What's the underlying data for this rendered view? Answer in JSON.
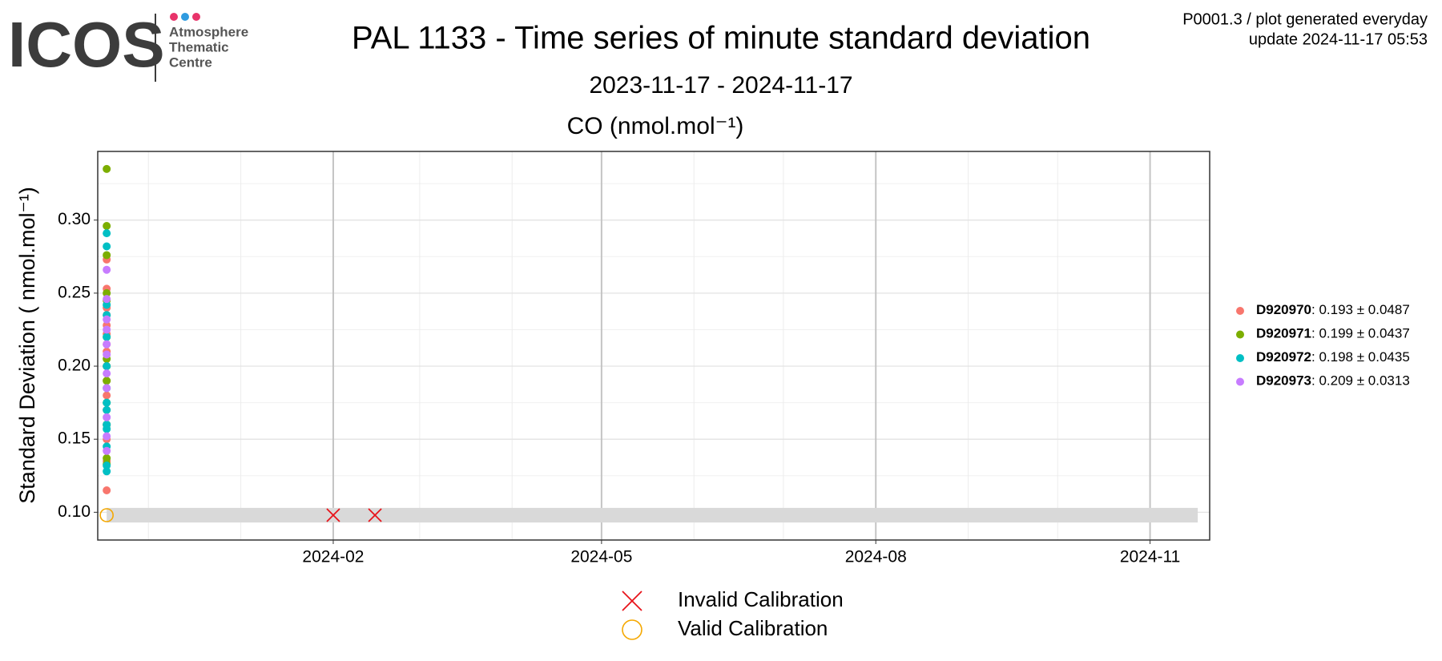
{
  "header": {
    "logo": "ICOS",
    "logo_lines": [
      "Atmosphere",
      "Thematic",
      "Centre"
    ],
    "top_right": [
      "P0001.3 / plot generated everyday",
      "update  2024-11-17 05:53"
    ]
  },
  "chart_data": {
    "type": "scatter",
    "title": "PAL 1133 - Time series of minute standard deviation",
    "subtitle": "2023-11-17 - 2024-11-17",
    "panel_title": "CO (nmol.mol⁻¹)",
    "y_label": "Standard Deviation ( nmol.mol⁻¹)",
    "xlim": [
      "2023-11-14",
      "2024-11-21"
    ],
    "xticks": [
      {
        "value": "2024-02-01",
        "label": "2024-02"
      },
      {
        "value": "2024-05-01",
        "label": "2024-05"
      },
      {
        "value": "2024-08-01",
        "label": "2024-08"
      },
      {
        "value": "2024-11-01",
        "label": "2024-11"
      }
    ],
    "xminor": [
      "2023-12-01",
      "2024-01-01",
      "2024-03-01",
      "2024-04-01",
      "2024-06-01",
      "2024-07-01",
      "2024-09-01",
      "2024-10-01"
    ],
    "ylim": [
      0.081,
      0.347
    ],
    "yticks": [
      {
        "value": 0.1,
        "label": "0.10"
      },
      {
        "value": 0.15,
        "label": "0.15"
      },
      {
        "value": 0.2,
        "label": "0.20"
      },
      {
        "value": 0.25,
        "label": "0.25"
      },
      {
        "value": 0.3,
        "label": "0.30"
      }
    ],
    "yminor": [
      0.125,
      0.175,
      0.225,
      0.275,
      0.325
    ],
    "grid": true,
    "band": {
      "x": [
        "2023-11-17",
        "2024-11-17"
      ],
      "ylim": [
        0.093,
        0.103
      ],
      "color": "#d9d9d9"
    },
    "series": [
      {
        "name": "D920970",
        "legend_text": ": 0.193 ± 0.0487",
        "color": "#F8766D",
        "x": [
          "2023-11-17",
          "2023-11-17",
          "2023-11-17",
          "2023-11-17",
          "2023-11-17",
          "2023-11-17",
          "2023-11-17",
          "2023-11-17",
          "2023-11-17",
          "2023-11-17",
          "2023-11-17",
          "2023-11-17",
          "2023-11-17",
          "2023-11-17",
          "2023-11-17",
          "2023-11-17"
        ],
        "values": [
          0.273,
          0.253,
          0.24,
          0.235,
          0.228,
          0.222,
          0.215,
          0.21,
          0.2,
          0.19,
          0.18,
          0.17,
          0.16,
          0.15,
          0.135,
          0.115
        ]
      },
      {
        "name": "D920971",
        "legend_text": ": 0.199 ± 0.0437",
        "color": "#7CAE00",
        "x": [
          "2023-11-17",
          "2023-11-17",
          "2023-11-17",
          "2023-11-17",
          "2023-11-17",
          "2023-11-17",
          "2023-11-17",
          "2023-11-17",
          "2023-11-17",
          "2023-11-17",
          "2023-11-17",
          "2023-11-17",
          "2023-11-17"
        ],
        "values": [
          0.335,
          0.296,
          0.276,
          0.25,
          0.245,
          0.22,
          0.205,
          0.2,
          0.19,
          0.175,
          0.16,
          0.137,
          0.133
        ]
      },
      {
        "name": "D920972",
        "legend_text": ": 0.198 ± 0.0435",
        "color": "#00BFC4",
        "x": [
          "2023-11-17",
          "2023-11-17",
          "2023-11-17",
          "2023-11-17",
          "2023-11-17",
          "2023-11-17",
          "2023-11-17",
          "2023-11-17",
          "2023-11-17",
          "2023-11-17",
          "2023-11-17",
          "2023-11-17",
          "2023-11-17",
          "2023-11-17"
        ],
        "values": [
          0.291,
          0.282,
          0.242,
          0.235,
          0.22,
          0.2,
          0.185,
          0.175,
          0.17,
          0.16,
          0.157,
          0.145,
          0.132,
          0.128
        ]
      },
      {
        "name": "D920973",
        "legend_text": ": 0.209 ± 0.0313",
        "color": "#C77CFF",
        "x": [
          "2023-11-17",
          "2023-11-17",
          "2023-11-17",
          "2023-11-17",
          "2023-11-17",
          "2023-11-17",
          "2023-11-17",
          "2023-11-17",
          "2023-11-17",
          "2023-11-17",
          "2023-11-17"
        ],
        "values": [
          0.266,
          0.246,
          0.232,
          0.225,
          0.215,
          0.208,
          0.195,
          0.185,
          0.165,
          0.152,
          0.142
        ]
      }
    ],
    "calibrations": [
      {
        "name": "Invalid Calibration",
        "marker": "cross",
        "color": "#e8141b",
        "x": [
          "2024-02-01",
          "2024-02-15"
        ],
        "values": [
          0.098,
          0.098
        ]
      },
      {
        "name": "Valid Calibration",
        "marker": "circle",
        "color": "#f5a800",
        "x": [
          "2023-11-17"
        ],
        "values": [
          0.098
        ]
      }
    ]
  }
}
